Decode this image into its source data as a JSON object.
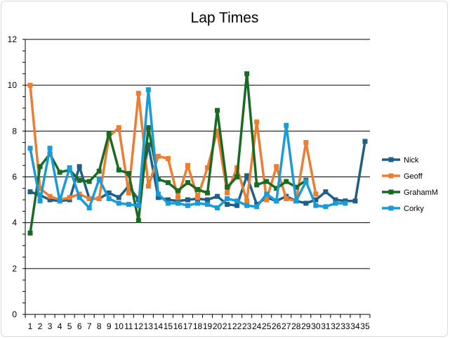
{
  "chart_data": {
    "type": "line",
    "title": "Lap Times",
    "xlabel": "",
    "ylabel": "",
    "ylim": [
      0,
      12
    ],
    "yticks": [
      0,
      2,
      4,
      6,
      8,
      10,
      12
    ],
    "categories": [
      "1",
      "2",
      "3",
      "4",
      "5",
      "6",
      "7",
      "8",
      "9",
      "10",
      "11",
      "12",
      "13",
      "14",
      "15",
      "16",
      "17",
      "18",
      "19",
      "20",
      "21",
      "22",
      "23",
      "24",
      "25",
      "26",
      "27",
      "28",
      "29",
      "30",
      "31",
      "32",
      "33",
      "34",
      "35"
    ],
    "grid": true,
    "legend_position": "right",
    "series": [
      {
        "name": "Nick",
        "color": "#1f5f86",
        "values": [
          5.35,
          5.2,
          5.0,
          4.95,
          5.0,
          6.45,
          5.05,
          5.05,
          5.3,
          5.1,
          5.6,
          5.0,
          7.4,
          5.1,
          5.0,
          4.95,
          5.0,
          5.05,
          5.0,
          5.15,
          4.8,
          4.75,
          6.05,
          4.8,
          5.1,
          4.95,
          5.15,
          4.95,
          4.85,
          5.0,
          5.35,
          5.0,
          4.95,
          4.95,
          7.55
        ]
      },
      {
        "name": "Geoff",
        "color": "#ed7d31",
        "values": [
          10.0,
          5.5,
          5.15,
          5.0,
          5.1,
          5.25,
          5.05,
          5.05,
          7.75,
          8.15,
          5.3,
          9.65,
          5.6,
          6.9,
          6.8,
          5.1,
          6.5,
          5.1,
          6.4,
          8.0,
          5.3,
          6.4,
          4.95,
          8.4,
          5.0,
          6.45,
          5.05,
          4.95,
          7.5,
          5.25,
          null,
          null,
          null,
          null,
          null
        ]
      },
      {
        "name": "GrahamM",
        "color": "#196b24",
        "values": [
          3.55,
          6.45,
          7.0,
          6.2,
          6.3,
          5.85,
          5.8,
          6.25,
          7.9,
          6.3,
          6.15,
          4.1,
          8.15,
          5.9,
          5.75,
          5.4,
          5.75,
          5.45,
          5.3,
          8.9,
          5.55,
          6.0,
          10.5,
          5.65,
          5.8,
          5.5,
          5.8,
          5.55,
          5.85,
          null,
          null,
          null,
          null,
          null,
          null
        ]
      },
      {
        "name": "Corky",
        "color": "#1a9ad6",
        "values": [
          7.25,
          4.95,
          7.25,
          4.95,
          6.4,
          5.1,
          4.65,
          5.9,
          5.05,
          4.85,
          4.8,
          4.75,
          9.8,
          5.25,
          4.85,
          4.85,
          4.75,
          4.85,
          4.8,
          4.65,
          5.05,
          4.95,
          4.75,
          4.7,
          5.25,
          4.95,
          8.25,
          4.95,
          5.8,
          4.75,
          4.7,
          4.85,
          4.85,
          null,
          null
        ]
      }
    ]
  }
}
